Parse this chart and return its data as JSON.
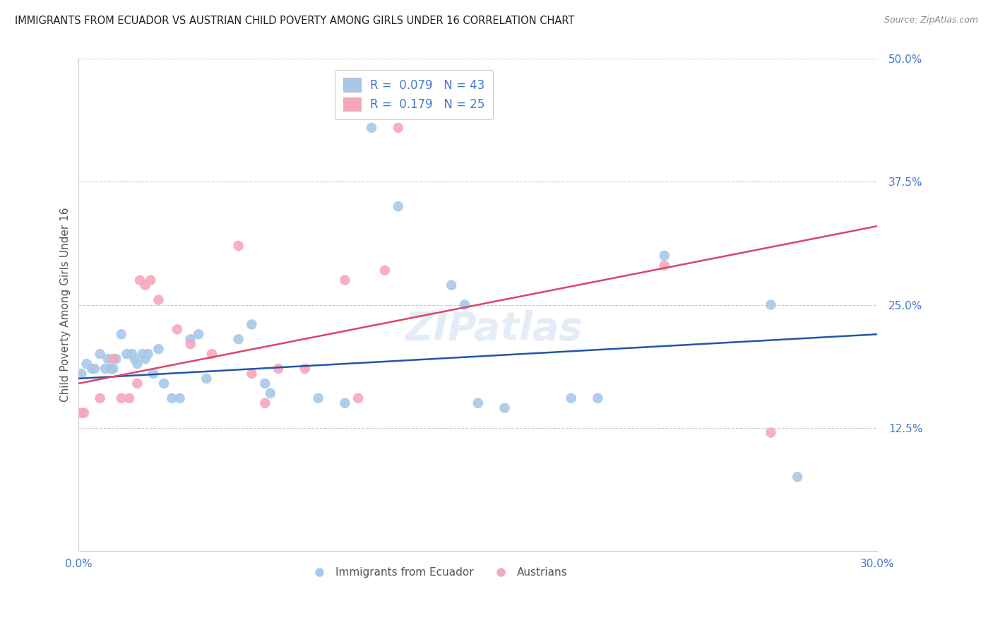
{
  "title": "IMMIGRANTS FROM ECUADOR VS AUSTRIAN CHILD POVERTY AMONG GIRLS UNDER 16 CORRELATION CHART",
  "source": "Source: ZipAtlas.com",
  "ylabel": "Child Poverty Among Girls Under 16",
  "legend_label1": "Immigrants from Ecuador",
  "legend_label2": "Austrians",
  "R1": 0.079,
  "N1": 43,
  "R2": 0.179,
  "N2": 25,
  "xlim": [
    0.0,
    0.3
  ],
  "ylim": [
    0.0,
    0.5
  ],
  "xticks": [
    0.0,
    0.05,
    0.1,
    0.15,
    0.2,
    0.25,
    0.3
  ],
  "yticks": [
    0.0,
    0.125,
    0.25,
    0.375,
    0.5
  ],
  "ytick_labels": [
    "",
    "12.5%",
    "25.0%",
    "37.5%",
    "50.0%"
  ],
  "xtick_labels": [
    "0.0%",
    "",
    "",
    "",
    "",
    "",
    "30.0%"
  ],
  "color_blue": "#a8c8e8",
  "color_pink": "#f5a8bc",
  "line_color_blue": "#2255aa",
  "line_color_pink": "#dd4466",
  "axis_label_color": "#4477cc",
  "watermark": "ZIPatlas",
  "blue_scatter_x": [
    0.001,
    0.003,
    0.005,
    0.006,
    0.008,
    0.01,
    0.011,
    0.012,
    0.013,
    0.014,
    0.016,
    0.018,
    0.02,
    0.021,
    0.022,
    0.024,
    0.025,
    0.026,
    0.028,
    0.03,
    0.032,
    0.035,
    0.038,
    0.042,
    0.045,
    0.048,
    0.06,
    0.065,
    0.07,
    0.072,
    0.09,
    0.1,
    0.11,
    0.12,
    0.14,
    0.145,
    0.15,
    0.16,
    0.185,
    0.195,
    0.22,
    0.26,
    0.27
  ],
  "blue_scatter_y": [
    0.18,
    0.19,
    0.185,
    0.185,
    0.2,
    0.185,
    0.195,
    0.185,
    0.185,
    0.195,
    0.22,
    0.2,
    0.2,
    0.195,
    0.19,
    0.2,
    0.195,
    0.2,
    0.18,
    0.205,
    0.17,
    0.155,
    0.155,
    0.215,
    0.22,
    0.175,
    0.215,
    0.23,
    0.17,
    0.16,
    0.155,
    0.15,
    0.43,
    0.35,
    0.27,
    0.25,
    0.15,
    0.145,
    0.155,
    0.155,
    0.3,
    0.25,
    0.075
  ],
  "pink_scatter_x": [
    0.001,
    0.002,
    0.008,
    0.013,
    0.016,
    0.019,
    0.022,
    0.023,
    0.025,
    0.027,
    0.03,
    0.037,
    0.042,
    0.05,
    0.06,
    0.065,
    0.07,
    0.075,
    0.085,
    0.1,
    0.105,
    0.115,
    0.12,
    0.22,
    0.26
  ],
  "pink_scatter_y": [
    0.14,
    0.14,
    0.155,
    0.195,
    0.155,
    0.155,
    0.17,
    0.275,
    0.27,
    0.275,
    0.255,
    0.225,
    0.21,
    0.2,
    0.31,
    0.18,
    0.15,
    0.185,
    0.185,
    0.275,
    0.155,
    0.285,
    0.43,
    0.29,
    0.12
  ],
  "blue_line_x": [
    0.0,
    0.3
  ],
  "blue_line_y": [
    0.175,
    0.22
  ],
  "pink_line_x": [
    0.0,
    0.3
  ],
  "pink_line_y": [
    0.17,
    0.33
  ]
}
